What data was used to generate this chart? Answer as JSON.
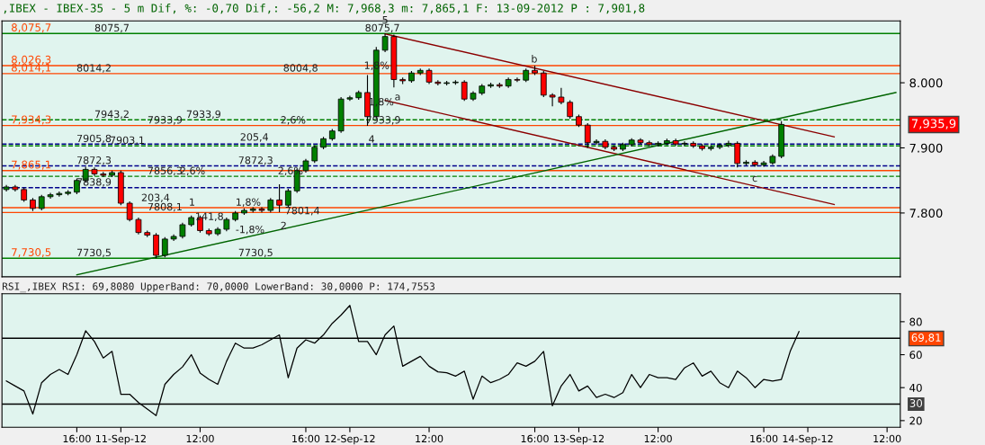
{
  "chart_data": [
    {
      "type": "candlestick",
      "title": ",IBEX - IBEX-35 - 5 m Dif, %: -0,70 Dif,: -56,2 M: 7,968,3 m: 7,865,1 F: 13-09-2012 P : 7,901,8",
      "categories": [
        null,
        null,
        null,
        null,
        null,
        null,
        null,
        null,
        null,
        null,
        null,
        null,
        null,
        null,
        null,
        null,
        null,
        null,
        null,
        null,
        null,
        null,
        null,
        null,
        null,
        null,
        null,
        null,
        null,
        null,
        null,
        null,
        null,
        null,
        null,
        null,
        null,
        null,
        null,
        null,
        null,
        null,
        null,
        null,
        null,
        null,
        null,
        null,
        null,
        null,
        null,
        null,
        null,
        null,
        null,
        null,
        null,
        null,
        null,
        null,
        null,
        null,
        null,
        null,
        null,
        null,
        null,
        null,
        null,
        null,
        null,
        null,
        null,
        null,
        null,
        null,
        null,
        null,
        null,
        null,
        null,
        null,
        null,
        null,
        null,
        null,
        null,
        null,
        null,
        null,
        null,
        null,
        null,
        null,
        null,
        null,
        null,
        null,
        null,
        null,
        null,
        null
      ],
      "ohlc": [
        [
          7836,
          7843,
          7833,
          7840
        ],
        [
          7840,
          7843,
          7833,
          7836
        ],
        [
          7836,
          7839,
          7817,
          7820
        ],
        [
          7820,
          7823,
          7803,
          7807
        ],
        [
          7807,
          7828,
          7804,
          7825
        ],
        [
          7825,
          7831,
          7822,
          7828
        ],
        [
          7828,
          7833,
          7825,
          7830
        ],
        [
          7830,
          7835,
          7827,
          7832
        ],
        [
          7832,
          7853,
          7829,
          7850
        ],
        [
          7850,
          7871,
          7847,
          7867
        ],
        [
          7867,
          7870,
          7857,
          7860
        ],
        [
          7860,
          7863,
          7855,
          7858
        ],
        [
          7858,
          7865,
          7855,
          7862
        ],
        [
          7862,
          7865,
          7812,
          7815
        ],
        [
          7815,
          7818,
          7787,
          7790
        ],
        [
          7790,
          7793,
          7767,
          7770
        ],
        [
          7770,
          7773,
          7763,
          7766
        ],
        [
          7766,
          7769,
          7730.5,
          7735
        ],
        [
          7735,
          7763,
          7732,
          7760
        ],
        [
          7760,
          7767,
          7757,
          7764
        ],
        [
          7764,
          7785,
          7761,
          7782
        ],
        [
          7782,
          7796,
          7779,
          7793
        ],
        [
          7793,
          7796,
          7770,
          7773
        ],
        [
          7773,
          7776,
          7765,
          7768
        ],
        [
          7768,
          7778,
          7765,
          7775
        ],
        [
          7775,
          7793,
          7772,
          7790
        ],
        [
          7790,
          7803,
          7787,
          7800
        ],
        [
          7800,
          7807,
          7797,
          7804
        ],
        [
          7804,
          7809,
          7801,
          7806
        ],
        [
          7806,
          7809,
          7801,
          7804
        ],
        [
          7804,
          7823,
          7801,
          7820
        ],
        [
          7820,
          7844,
          7801.4,
          7812
        ],
        [
          7812,
          7837,
          7809,
          7834
        ],
        [
          7834,
          7868,
          7831,
          7865
        ],
        [
          7865,
          7883,
          7862,
          7880
        ],
        [
          7880,
          7904,
          7877,
          7901
        ],
        [
          7901,
          7917,
          7898,
          7914
        ],
        [
          7914,
          7929,
          7911,
          7926
        ],
        [
          7926,
          7978,
          7923,
          7975
        ],
        [
          7975,
          7980,
          7972,
          7977
        ],
        [
          7977,
          7988,
          7974,
          7985
        ],
        [
          7985,
          8012,
          7933.9,
          7948
        ],
        [
          7948,
          8055,
          7945,
          8050
        ],
        [
          8050,
          8075.7,
          8047,
          8071
        ],
        [
          8071,
          8074,
          7993,
          8005
        ],
        [
          8005,
          8008,
          7998,
          8003
        ],
        [
          8003,
          8018,
          8000,
          8015
        ],
        [
          8015,
          8022,
          8012,
          8019
        ],
        [
          8019,
          8022,
          7998,
          8001
        ],
        [
          8001,
          8004,
          7996,
          7999
        ],
        [
          7999,
          8003,
          7996,
          8000
        ],
        [
          8000,
          8004,
          7997,
          8001
        ],
        [
          8001,
          8004,
          7972,
          7975
        ],
        [
          7975,
          7987,
          7972,
          7984
        ],
        [
          7984,
          7998,
          7981,
          7995
        ],
        [
          7995,
          8000,
          7992,
          7997
        ],
        [
          7997,
          8000,
          7992,
          7995
        ],
        [
          7995,
          8008,
          7992,
          8005
        ],
        [
          8005,
          8008,
          8001,
          8004
        ],
        [
          8004,
          8022,
          8001,
          8019
        ],
        [
          8019,
          8026.3,
          8012,
          8015
        ],
        [
          8015,
          8018,
          7978,
          7981
        ],
        [
          7981,
          7984,
          7964,
          7978
        ],
        [
          7978,
          7992,
          7967,
          7970
        ],
        [
          7970,
          7973,
          7945,
          7948
        ],
        [
          7948,
          7951,
          7932,
          7935
        ],
        [
          7935,
          7938,
          7900,
          7908
        ],
        [
          7908,
          7913,
          7905,
          7910
        ],
        [
          7910,
          7913,
          7898,
          7901
        ],
        [
          7901,
          7904,
          7895,
          7898
        ],
        [
          7898,
          7908,
          7895,
          7905
        ],
        [
          7905,
          7915,
          7902,
          7912
        ],
        [
          7912,
          7915,
          7905,
          7908
        ],
        [
          7908,
          7911,
          7902,
          7905
        ],
        [
          7905,
          7910,
          7902,
          7907
        ],
        [
          7907,
          7914,
          7904,
          7911
        ],
        [
          7911,
          7914,
          7903,
          7906
        ],
        [
          7906,
          7910,
          7903,
          7907
        ],
        [
          7907,
          7910,
          7900,
          7903
        ],
        [
          7903,
          7906,
          7896,
          7899
        ],
        [
          7899,
          7904,
          7896,
          7901
        ],
        [
          7901,
          7907,
          7898,
          7904
        ],
        [
          7904,
          7911,
          7901,
          7907
        ],
        [
          7907,
          7910,
          7870,
          7876
        ],
        [
          7876,
          7881,
          7873,
          7878
        ],
        [
          7878,
          7881,
          7871,
          7874
        ],
        [
          7874,
          7880,
          7871,
          7877
        ],
        [
          7877,
          7890,
          7874,
          7887
        ],
        [
          7887,
          7941,
          7884,
          7936
        ],
        null,
        null,
        null,
        null,
        null,
        null,
        null,
        null,
        null,
        null,
        null,
        null,
        null
      ],
      "colors": [
        "#008000",
        "#ff0000",
        "#ff0000",
        "#ff0000",
        "#008000",
        "#008000",
        "#008000",
        "#008000",
        "#008000",
        "#008000",
        "#ff0000",
        "#ff0000",
        "#008000",
        "#ff0000",
        "#ff0000",
        "#ff0000",
        "#ff0000",
        "#ff0000",
        "#008000",
        "#008000",
        "#008000",
        "#008000",
        "#ff0000",
        "#ff0000",
        "#008000",
        "#008000",
        "#008000",
        "#008000",
        "#008000",
        "#ff0000",
        "#008000",
        "#ff0000",
        "#008000",
        "#008000",
        "#008000",
        "#008000",
        "#008000",
        "#008000",
        "#008000",
        "#008000",
        "#008000",
        "#ff0000",
        "#008000",
        "#008000",
        "#ff0000",
        "#ff0000",
        "#008000",
        "#008000",
        "#ff0000",
        "#ff0000",
        "#008000",
        "#008000",
        "#ff0000",
        "#008000",
        "#008000",
        "#008000",
        "#ff0000",
        "#008000",
        "#ff0000",
        "#008000",
        "#ff0000",
        "#ff0000",
        "#ff0000",
        "#ff0000",
        "#ff0000",
        "#ff0000",
        "#ff0000",
        "#008000",
        "#ff0000",
        "#ff0000",
        "#008000",
        "#008000",
        "#ff0000",
        "#ff0000",
        "#008000",
        "#008000",
        "#ff0000",
        "#008000",
        "#ff0000",
        "#ff0000",
        "#008000",
        "#008000",
        "#008000",
        "#ff0000",
        "#008000",
        "#ff0000",
        "#008000",
        "#008000",
        "#008000",
        null,
        null,
        null,
        null,
        null,
        null,
        null,
        null,
        null,
        null,
        null,
        null,
        null
      ],
      "series": [
        {
          "type": "line",
          "color": "#8b0000",
          "values": [
            null,
            null,
            null,
            null,
            null,
            null,
            null,
            null,
            null,
            null,
            null,
            null,
            null,
            null,
            null,
            null,
            null,
            null,
            null,
            null,
            null,
            null,
            null,
            null,
            null,
            null,
            null,
            null,
            null,
            null,
            null,
            null,
            null,
            null,
            null,
            null,
            null,
            null,
            null,
            null,
            null,
            null,
            null,
            8075,
            null,
            null,
            null,
            null,
            null,
            null,
            null,
            null,
            null,
            null,
            null,
            null,
            null,
            null,
            null,
            null,
            null,
            null,
            null,
            null,
            null,
            null,
            null,
            null,
            null,
            null,
            null,
            null,
            null,
            null,
            null,
            null,
            null,
            null,
            null,
            null,
            null,
            null,
            null,
            null,
            null,
            null,
            null,
            null,
            null,
            null,
            null,
            null,
            null,
            null,
            7917,
            null,
            null,
            null,
            null,
            null,
            null,
            null
          ]
        },
        {
          "type": "line",
          "color": "#8b0000",
          "values": [
            null,
            null,
            null,
            null,
            null,
            null,
            null,
            null,
            null,
            null,
            null,
            null,
            null,
            null,
            null,
            null,
            null,
            null,
            null,
            null,
            null,
            null,
            null,
            null,
            null,
            null,
            null,
            null,
            null,
            null,
            null,
            null,
            null,
            null,
            null,
            null,
            null,
            null,
            null,
            null,
            null,
            null,
            null,
            7973,
            null,
            null,
            null,
            null,
            null,
            null,
            null,
            null,
            null,
            null,
            null,
            null,
            null,
            null,
            null,
            null,
            null,
            null,
            null,
            null,
            null,
            null,
            null,
            null,
            null,
            null,
            null,
            null,
            null,
            null,
            null,
            null,
            null,
            null,
            null,
            null,
            null,
            null,
            null,
            null,
            null,
            null,
            null,
            null,
            null,
            null,
            null,
            null,
            null,
            null,
            7813,
            null,
            null,
            null,
            null,
            null,
            null,
            null
          ]
        },
        {
          "type": "line",
          "color": "#006400",
          "values": [
            null,
            null,
            null,
            null,
            null,
            null,
            null,
            null,
            7705,
            null,
            null,
            null,
            null,
            null,
            null,
            null,
            null,
            null,
            null,
            null,
            null,
            null,
            null,
            null,
            null,
            null,
            null,
            null,
            null,
            null,
            null,
            null,
            null,
            null,
            null,
            null,
            null,
            null,
            null,
            null,
            null,
            null,
            null,
            null,
            null,
            null,
            null,
            null,
            null,
            null,
            null,
            null,
            null,
            null,
            null,
            null,
            null,
            null,
            null,
            null,
            null,
            null,
            null,
            null,
            null,
            null,
            null,
            null,
            null,
            null,
            null,
            null,
            null,
            null,
            null,
            null,
            null,
            null,
            null,
            null,
            null,
            null,
            null,
            null,
            null,
            null,
            null,
            null,
            null,
            null,
            null,
            null,
            null,
            null,
            null,
            null,
            null,
            null,
            null,
            null,
            null,
            7985
          ]
        }
      ],
      "ylim": [
        7702,
        8095
      ],
      "yticks": [
        {
          "value": 7800,
          "label": "7.800"
        },
        {
          "value": 7900,
          "label": "7.900"
        },
        {
          "value": 8000,
          "label": "8.000"
        }
      ],
      "tick_labels": "y",
      "ref_lines": [
        {
          "axis": "y",
          "value": 8075.7,
          "label": "8,075,7",
          "color": "#008000"
        },
        {
          "axis": "y",
          "value": 8026.3,
          "label": "8,026,3",
          "color": "#ff4500"
        },
        {
          "axis": "y",
          "value": 8014.1,
          "label": "8,014,1",
          "color": "#ff4500"
        },
        {
          "axis": "y",
          "value": 7943.2,
          "color": "#008000",
          "line_style": "dashed"
        },
        {
          "axis": "y",
          "value": 7934.3,
          "label": "7,934,3",
          "color": "#ff4500"
        },
        {
          "axis": "y",
          "value": 7905.8,
          "color": "#00008b",
          "line_style": "dashed"
        },
        {
          "axis": "y",
          "value": 7903.1,
          "color": "#008000",
          "line_style": "dashed"
        },
        {
          "axis": "y",
          "value": 7872.3,
          "color": "#00008b",
          "line_style": "dashed"
        },
        {
          "axis": "y",
          "value": 7865.1,
          "label": "7,865,1",
          "color": "#ff4500"
        },
        {
          "axis": "y",
          "value": 7856.3,
          "color": "#008000",
          "line_style": "dashed"
        },
        {
          "axis": "y",
          "value": 7838.9,
          "color": "#00008b",
          "line_style": "dashed"
        },
        {
          "axis": "y",
          "value": 7808.1,
          "color": "#ff4500"
        },
        {
          "axis": "y",
          "value": 7800.8,
          "color": "#ff4500"
        },
        {
          "axis": "y",
          "value": 7730.5,
          "label": "7,730,5",
          "color": "#008000"
        }
      ],
      "annotations": [
        {
          "text": "8075,7",
          "y": 8075.7
        },
        {
          "text": "8014,2",
          "y": 8014.1
        },
        {
          "text": "8004,8",
          "y": 8014.1
        },
        {
          "text": "7943,2",
          "y": 7943.2
        },
        {
          "text": "7933,9",
          "y": 7934.3
        },
        {
          "text": "7933,9",
          "y": 7943.2
        },
        {
          "text": "7905,8",
          "y": 7905.8
        },
        {
          "text": "7903,1",
          "y": 7903.1
        },
        {
          "text": "205,4",
          "y": 7908
        },
        {
          "text": "2,6%",
          "y": 7934.3
        },
        {
          "text": "7872,3",
          "y": 7872.3
        },
        {
          "text": "7838,9",
          "y": 7838.9
        },
        {
          "text": "7856,3",
          "y": 7856.3
        },
        {
          "text": "2,6%",
          "y": 7856.3
        },
        {
          "text": "7872,3",
          "y": 7872.3
        },
        {
          "text": "2,6%",
          "y": 7856.3
        },
        {
          "text": "203,4",
          "y": 7815
        },
        {
          "text": "7808,1",
          "y": 7800.8
        },
        {
          "text": "1",
          "y": 7808.1
        },
        {
          "text": "1,8%",
          "y": 7808.1
        },
        "141,8",
        {
          "text": "7801,4",
          "y": 7795
        },
        "2",
        "-1,8%",
        {
          "text": "7730,5",
          "y": 7730.5
        },
        {
          "text": "7730,5",
          "y": 7730.5
        },
        {
          "text": "8075,7",
          "y": 8075.7
        },
        {
          "text": "1,8%",
          "y": 8018
        },
        "1,8%",
        {
          "text": "7933,9",
          "y": 7934.3
        },
        "5",
        {
          "text": "4",
          "y": 7905
        },
        "a",
        {
          "text": "b",
          "y": 8028
        },
        {
          "text": "c",
          "y": 7845
        },
        "7,935,9"
      ]
    },
    {
      "type": "line",
      "title": "RSI_,IBEX RSI: 69,8080 UpperBand: 70,0000 LowerBand: 30,0000 P: 174,7553",
      "categories": [
        null,
        null,
        null,
        null,
        null,
        null,
        null,
        null,
        "16:00",
        null,
        null,
        null,
        null,
        "11-Sep-12",
        null,
        null,
        null,
        null,
        null,
        null,
        null,
        null,
        "12:00",
        null,
        null,
        null,
        null,
        null,
        null,
        null,
        null,
        null,
        null,
        null,
        "16:00",
        null,
        null,
        null,
        null,
        "12-Sep-12",
        null,
        null,
        null,
        null,
        null,
        null,
        null,
        null,
        "12:00",
        null,
        null,
        null,
        null,
        null,
        null,
        null,
        null,
        null,
        null,
        null,
        "16:00",
        null,
        null,
        null,
        null,
        "13-Sep-12",
        null,
        null,
        null,
        null,
        null,
        null,
        null,
        null,
        "12:00",
        null,
        null,
        null,
        null,
        null,
        null,
        null,
        null,
        null,
        null,
        null,
        "16:00",
        null,
        null,
        null,
        null,
        "14-Sep-12",
        null,
        null,
        null,
        null,
        null,
        null,
        null,
        null,
        "12:00",
        null
      ],
      "series": [
        {
          "color": "#000000",
          "values": [
            44,
            41,
            38,
            24,
            43,
            48,
            51,
            48,
            60,
            74.5,
            68,
            58,
            62,
            36,
            36,
            31,
            27,
            23,
            42,
            48,
            52.6,
            60,
            48.9,
            45,
            42,
            56,
            67,
            64,
            64,
            66,
            69,
            72,
            46,
            64,
            69,
            67,
            72,
            79,
            84,
            89.9,
            68,
            68,
            60,
            72,
            77.4,
            53,
            56,
            59,
            53,
            49.6,
            49,
            47,
            50,
            33,
            47,
            43,
            45,
            48,
            55,
            53,
            56,
            62,
            29,
            41,
            48,
            38,
            41,
            34,
            36,
            34,
            37,
            48,
            40,
            48,
            46,
            46,
            45,
            52,
            55,
            47,
            50,
            43,
            40,
            50,
            46,
            40,
            45,
            44,
            45,
            62,
            74,
            null,
            null,
            null,
            null,
            null,
            null,
            null,
            null,
            null,
            null,
            null
          ]
        }
      ],
      "ylim": [
        16,
        97
      ],
      "yticks": [
        20,
        40,
        60,
        80
      ],
      "ref_lines": [
        {
          "axis": "y",
          "value": 70,
          "color": "#000000"
        },
        {
          "axis": "y",
          "value": 30,
          "label": "30",
          "color": "#000000"
        }
      ],
      "annotations": [
        "69,81"
      ]
    }
  ]
}
